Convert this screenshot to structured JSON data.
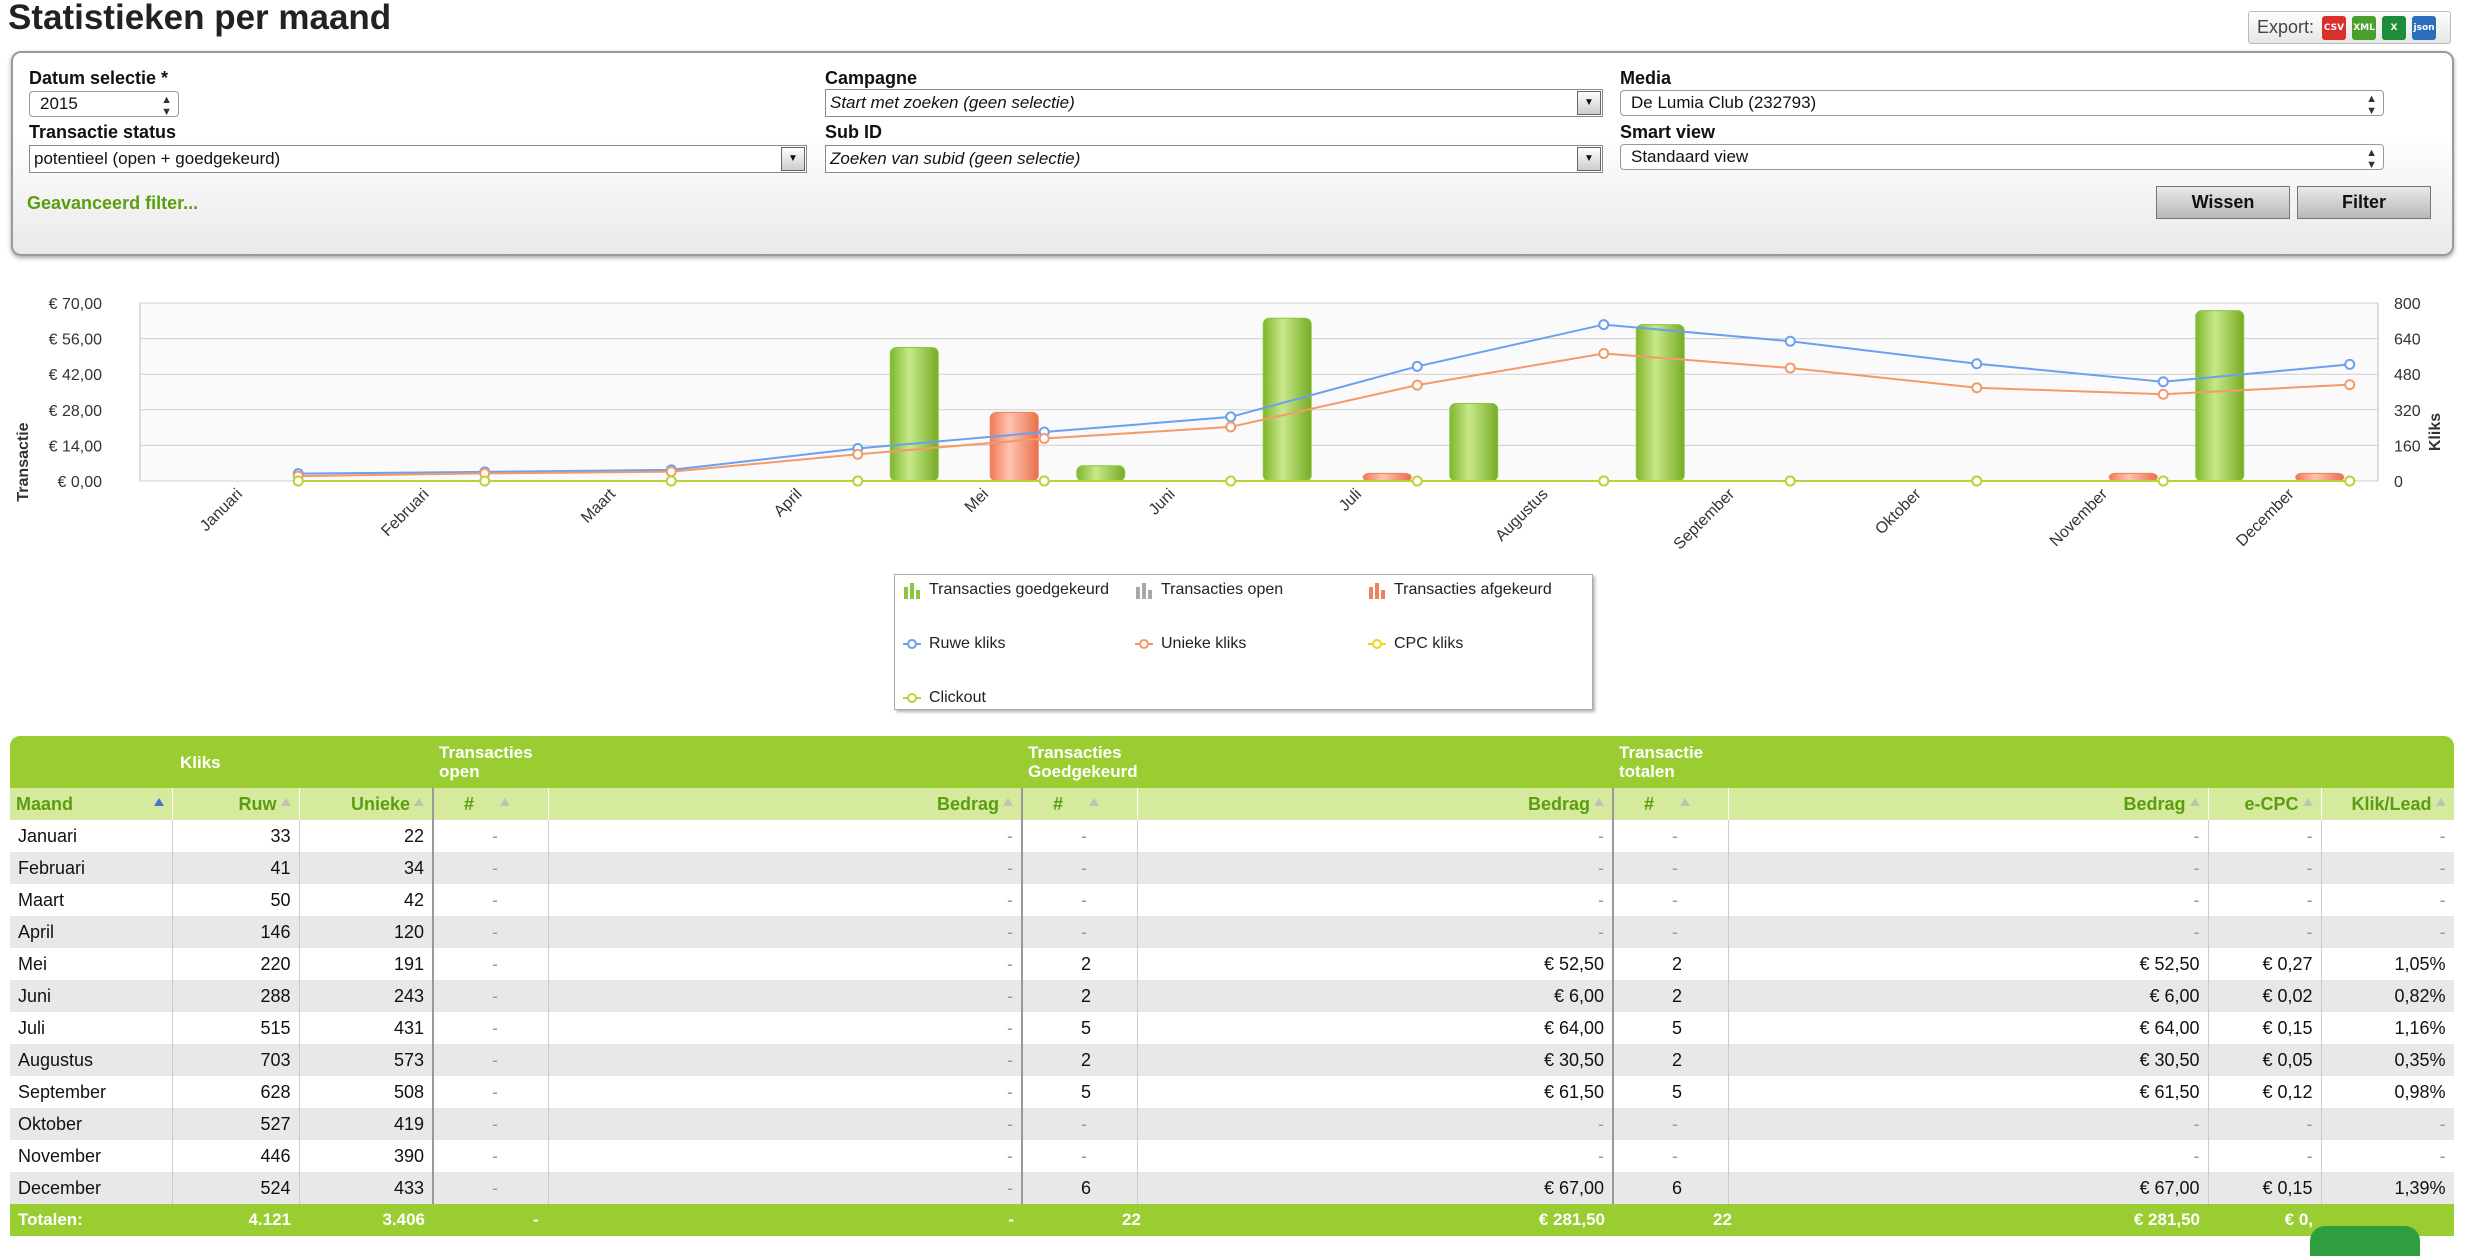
{
  "page": {
    "title": "Statistieken per maand"
  },
  "export": {
    "label": "Export:",
    "formats": [
      {
        "name": "csv-icon",
        "text": "CSV",
        "color": "#d9302c"
      },
      {
        "name": "xml-icon",
        "text": "XML",
        "color": "#4aa02c"
      },
      {
        "name": "excel-icon",
        "text": "X",
        "color": "#1e8c3a"
      },
      {
        "name": "json-icon",
        "text": "json",
        "color": "#2a6ebb"
      }
    ]
  },
  "filters": {
    "datum_label": "Datum selectie *",
    "datum_value": "2015",
    "status_label": "Transactie status",
    "status_value": "potentieel (open + goedgekeurd)",
    "campagne_label": "Campagne",
    "campagne_value": "Start met zoeken (geen selectie)",
    "subid_label": "Sub ID",
    "subid_value": "Zoeken van subid (geen selectie)",
    "media_label": "Media",
    "media_value": "De Lumia Club (232793)",
    "smartview_label": "Smart view",
    "smartview_value": "Standaard view",
    "advanced_link": "Geavanceerd filter...",
    "wissen": "Wissen",
    "filter": "Filter"
  },
  "chart_data": {
    "type": "bar",
    "categories": [
      "Januari",
      "Februari",
      "Maart",
      "April",
      "Mei",
      "Juni",
      "Juli",
      "Augustus",
      "September",
      "Oktober",
      "November",
      "December"
    ],
    "left_axis": {
      "label": "Transactie",
      "ticks": [
        "€ 0,00",
        "€ 14,00",
        "€ 28,00",
        "€ 42,00",
        "€ 56,00",
        "€ 70,00"
      ],
      "ylim": [
        0,
        70
      ]
    },
    "right_axis": {
      "label": "Kliks",
      "ticks": [
        "0",
        "160",
        "320",
        "480",
        "640",
        "800"
      ],
      "ylim": [
        0,
        800
      ]
    },
    "series": [
      {
        "name": "Transacties goedgekeurd",
        "kind": "bar",
        "axis": "left",
        "color": "#8cc63f",
        "values": [
          0,
          0,
          0,
          0,
          52.5,
          6,
          64,
          30.5,
          61.5,
          0,
          0,
          67
        ]
      },
      {
        "name": "Transacties open",
        "kind": "bar",
        "axis": "left",
        "color": "#a8a8a8",
        "values": [
          0,
          0,
          0,
          0,
          0,
          0,
          0,
          0,
          0,
          0,
          0,
          0
        ]
      },
      {
        "name": "Transacties afgekeurd",
        "kind": "bar",
        "axis": "left",
        "color": "#f08060",
        "values": [
          0,
          0,
          0,
          0,
          27,
          0,
          3,
          0,
          0,
          0,
          3,
          3
        ]
      },
      {
        "name": "Ruwe kliks",
        "kind": "line",
        "axis": "right",
        "color": "#6b9ff0",
        "values": [
          33,
          41,
          50,
          146,
          220,
          288,
          515,
          703,
          628,
          527,
          446,
          524
        ]
      },
      {
        "name": "Unieke kliks",
        "kind": "line",
        "axis": "right",
        "color": "#f49a6a",
        "values": [
          22,
          34,
          42,
          120,
          191,
          243,
          431,
          573,
          508,
          419,
          390,
          433
        ]
      },
      {
        "name": "CPC kliks",
        "kind": "line",
        "axis": "right",
        "color": "#f2d31b",
        "values": [
          0,
          0,
          0,
          0,
          0,
          0,
          0,
          0,
          0,
          0,
          0,
          0
        ]
      },
      {
        "name": "Clickout",
        "kind": "line",
        "axis": "right",
        "color": "#b8d43a",
        "values": [
          0,
          0,
          0,
          0,
          0,
          0,
          0,
          0,
          0,
          0,
          0,
          0
        ]
      }
    ],
    "grid": true,
    "legend_position": "bottom-center"
  },
  "table": {
    "groups": {
      "kliks": "Kliks",
      "open_1": "Transacties",
      "open_2": "open",
      "goed_1": "Transacties",
      "goed_2": "Goedgekeurd",
      "tot_1": "Transactie",
      "tot_2": "totalen"
    },
    "headers": {
      "maand": "Maand",
      "ruw": "Ruw",
      "unieke": "Unieke",
      "open_n": "#",
      "open_b": "Bedrag",
      "goed_n": "#",
      "goed_b": "Bedrag",
      "tot_n": "#",
      "tot_b": "Bedrag",
      "ecpc": "e-CPC",
      "kliklead": "Klik/Lead"
    },
    "rows": [
      [
        "Januari",
        "33",
        "22",
        "-",
        "-",
        "-",
        "-",
        "-",
        "-",
        "-",
        "-"
      ],
      [
        "Februari",
        "41",
        "34",
        "-",
        "-",
        "-",
        "-",
        "-",
        "-",
        "-",
        "-"
      ],
      [
        "Maart",
        "50",
        "42",
        "-",
        "-",
        "-",
        "-",
        "-",
        "-",
        "-",
        "-"
      ],
      [
        "April",
        "146",
        "120",
        "-",
        "-",
        "-",
        "-",
        "-",
        "-",
        "-",
        "-"
      ],
      [
        "Mei",
        "220",
        "191",
        "-",
        "-",
        "2",
        "€ 52,50",
        "2",
        "€ 52,50",
        "€ 0,27",
        "1,05%"
      ],
      [
        "Juni",
        "288",
        "243",
        "-",
        "-",
        "2",
        "€ 6,00",
        "2",
        "€ 6,00",
        "€ 0,02",
        "0,82%"
      ],
      [
        "Juli",
        "515",
        "431",
        "-",
        "-",
        "5",
        "€ 64,00",
        "5",
        "€ 64,00",
        "€ 0,15",
        "1,16%"
      ],
      [
        "Augustus",
        "703",
        "573",
        "-",
        "-",
        "2",
        "€ 30,50",
        "2",
        "€ 30,50",
        "€ 0,05",
        "0,35%"
      ],
      [
        "September",
        "628",
        "508",
        "-",
        "-",
        "5",
        "€ 61,50",
        "5",
        "€ 61,50",
        "€ 0,12",
        "0,98%"
      ],
      [
        "Oktober",
        "527",
        "419",
        "-",
        "-",
        "-",
        "-",
        "-",
        "-",
        "-",
        "-"
      ],
      [
        "November",
        "446",
        "390",
        "-",
        "-",
        "-",
        "-",
        "-",
        "-",
        "-",
        "-"
      ],
      [
        "December",
        "524",
        "433",
        "-",
        "-",
        "6",
        "€ 67,00",
        "6",
        "€ 67,00",
        "€ 0,15",
        "1,39%"
      ]
    ],
    "totals": [
      "Totalen:",
      "4.121",
      "3.406",
      "-",
      "-",
      "22",
      "€ 281,50",
      "22",
      "€ 281,50",
      "€ 0,",
      ""
    ]
  }
}
